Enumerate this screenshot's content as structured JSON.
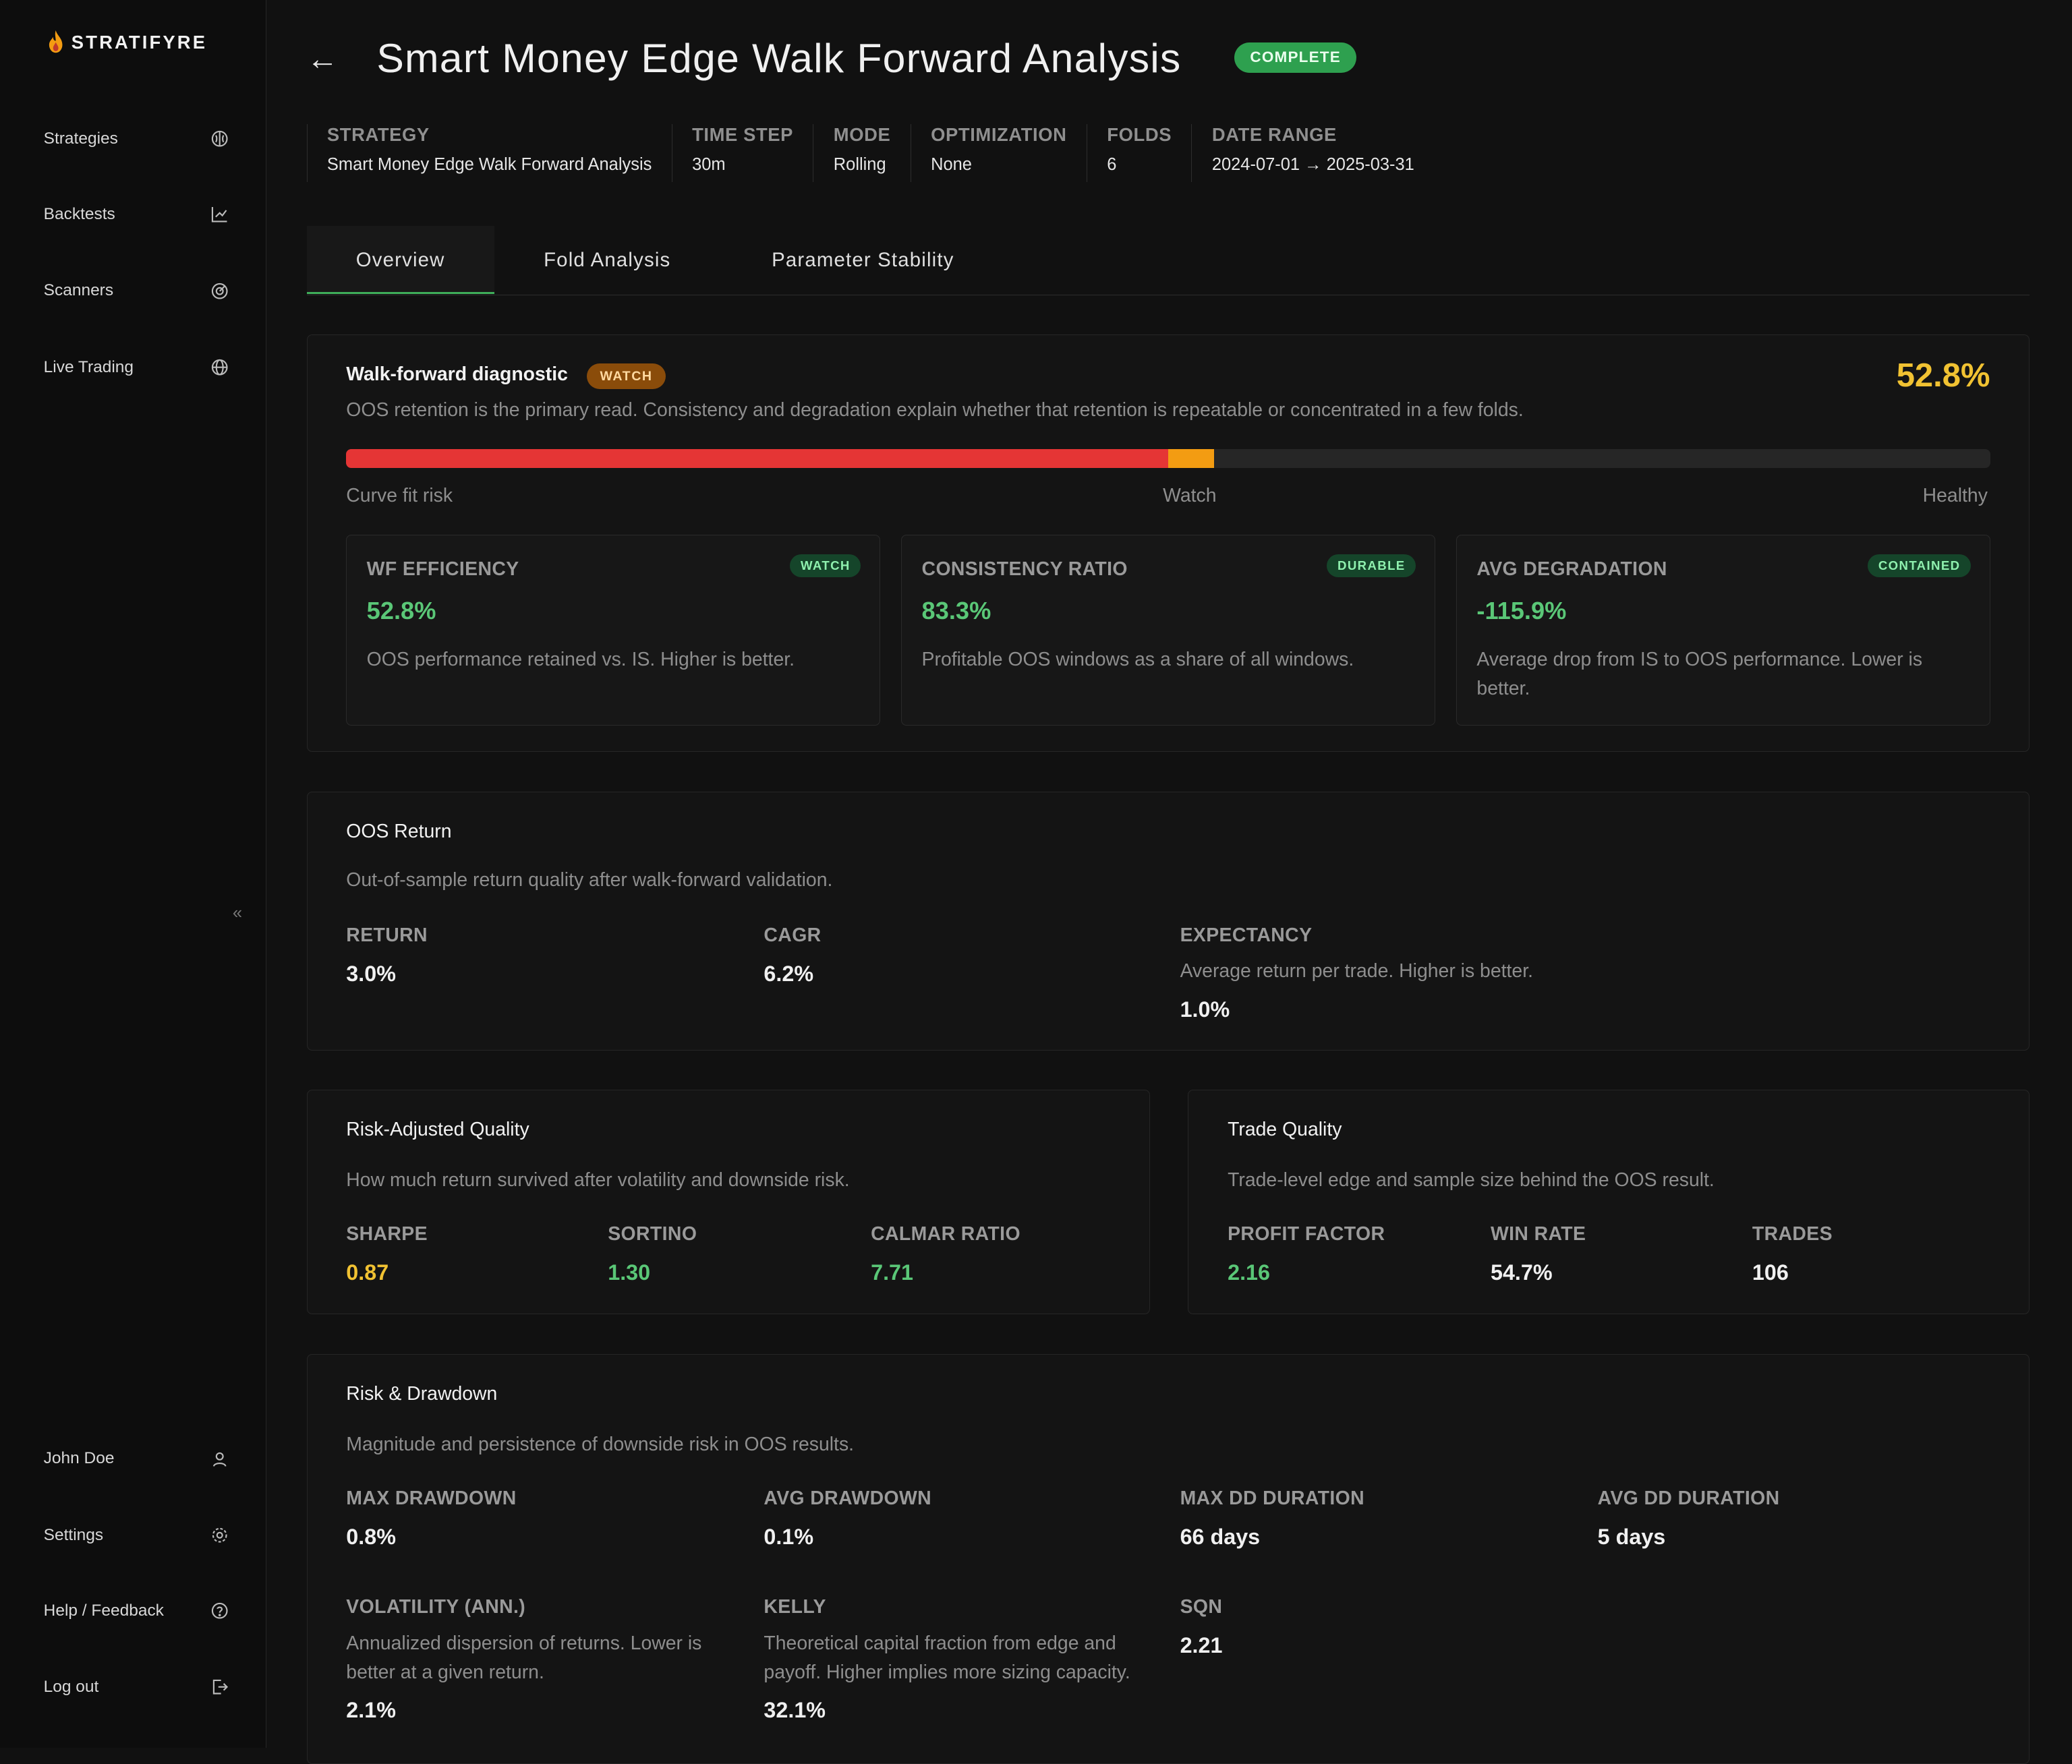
{
  "app": {
    "brand": "STRATIFYRE"
  },
  "sidebar": {
    "items": [
      {
        "label": "Strategies",
        "icon": "brain-icon"
      },
      {
        "label": "Backtests",
        "icon": "chart-icon"
      },
      {
        "label": "Scanners",
        "icon": "radar-icon"
      },
      {
        "label": "Live Trading",
        "icon": "globe-icon"
      }
    ],
    "bottom": [
      {
        "label": "John Doe",
        "icon": "user-icon"
      },
      {
        "label": "Settings",
        "icon": "gear-icon"
      },
      {
        "label": "Help / Feedback",
        "icon": "help-icon"
      },
      {
        "label": "Log out",
        "icon": "logout-icon"
      }
    ],
    "collapse": "«"
  },
  "header": {
    "back": "←",
    "title": "Smart Money Edge Walk Forward Analysis",
    "status": "COMPLETE"
  },
  "meta": [
    {
      "label": "STRATEGY",
      "value": "Smart Money Edge Walk Forward Analysis"
    },
    {
      "label": "TIME STEP",
      "value": "30m"
    },
    {
      "label": "MODE",
      "value": "Rolling"
    },
    {
      "label": "OPTIMIZATION",
      "value": "None"
    },
    {
      "label": "FOLDS",
      "value": "6"
    },
    {
      "label": "DATE RANGE",
      "value": "2024-07-01 → 2025-03-31"
    }
  ],
  "tabs": [
    "Overview",
    "Fold Analysis",
    "Parameter Stability"
  ],
  "diagnostic": {
    "title": "Walk-forward diagnostic",
    "badge": "WATCH",
    "score": "52.8%",
    "description": "OOS retention is the primary read. Consistency and degradation explain whether that retention is repeatable or concentrated in a few folds.",
    "bar_fill_fraction": 0.528,
    "bar_red_fraction": 0.5,
    "scale": {
      "left": "Curve fit risk",
      "mid": "Watch",
      "right": "Healthy"
    },
    "cards": [
      {
        "label": "WF EFFICIENCY",
        "badge": "WATCH",
        "value": "52.8%",
        "desc": "OOS performance retained vs. IS. Higher is better."
      },
      {
        "label": "CONSISTENCY RATIO",
        "badge": "DURABLE",
        "value": "83.3%",
        "desc": "Profitable OOS windows as a share of all windows."
      },
      {
        "label": "AVG DEGRADATION",
        "badge": "CONTAINED",
        "value": "-115.9%",
        "desc": "Average drop from IS to OOS performance. Lower is better."
      }
    ]
  },
  "oos_return": {
    "title": "OOS Return",
    "desc": "Out-of-sample return quality after walk-forward validation.",
    "return_label": "RETURN",
    "return_value": "3.0%",
    "cagr_label": "CAGR",
    "cagr_value": "6.2%",
    "exp_label": "EXPECTANCY",
    "exp_desc": "Average return per trade. Higher is better.",
    "exp_value": "1.0%"
  },
  "risk_quality": {
    "title": "Risk-Adjusted Quality",
    "desc": "How much return survived after volatility and downside risk.",
    "stats": [
      {
        "label": "SHARPE",
        "value": "0.87"
      },
      {
        "label": "SORTINO",
        "value": "1.30"
      },
      {
        "label": "CALMAR RATIO",
        "value": "7.71"
      }
    ]
  },
  "trade_quality": {
    "title": "Trade Quality",
    "desc": "Trade-level edge and sample size behind the OOS result.",
    "stats": [
      {
        "label": "PROFIT FACTOR",
        "value": "2.16"
      },
      {
        "label": "WIN RATE",
        "value": "54.7%"
      },
      {
        "label": "TRADES",
        "value": "106"
      }
    ]
  },
  "risk_drawdown": {
    "title": "Risk & Drawdown",
    "desc": "Magnitude and persistence of downside risk in OOS results.",
    "stats": [
      {
        "label": "MAX DRAWDOWN",
        "value": "0.8%"
      },
      {
        "label": "AVG DRAWDOWN",
        "value": "0.1%"
      },
      {
        "label": "MAX DD DURATION",
        "value": "66 days"
      },
      {
        "label": "AVG DD DURATION",
        "value": "5 days"
      },
      {
        "label": "VOLATILITY (ANN.)",
        "desc": "Annualized dispersion of returns. Lower is better at a given return.",
        "value": "2.1%"
      },
      {
        "label": "KELLY",
        "desc": "Theoretical capital fraction from edge and payoff. Higher implies more sizing capacity.",
        "value": "32.1%"
      },
      {
        "label": "SQN",
        "value": "2.21"
      }
    ]
  },
  "colors": {
    "accent_green": "#5ac777",
    "warn_yellow": "#f1c232",
    "bar_red": "#e53535",
    "bar_amber": "#f39c12"
  }
}
